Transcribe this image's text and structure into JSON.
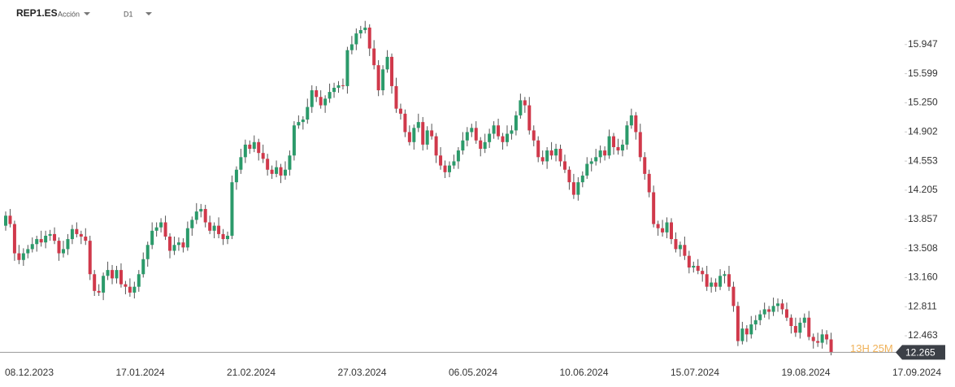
{
  "chart_data": {
    "type": "candlestick",
    "symbol": "REP1.ES",
    "kind": "Acción",
    "timeframe": "D1",
    "last_price": 12.265,
    "countdown": "13H 25M",
    "up_color": "#2b9a6a",
    "down_color": "#d0394b",
    "xlabels": [
      "08.12.2023",
      "17.01.2024",
      "21.02.2024",
      "27.03.2024",
      "06.05.2024",
      "10.06.2024",
      "15.07.2024",
      "19.08.2024",
      "17.09.2024"
    ],
    "ylim": [
      12.23,
      16.48
    ],
    "yticks": [
      15.947,
      15.599,
      {
        "value": 15.25,
        "label": "15.250"
      },
      14.902,
      14.553,
      14.205,
      13.857,
      13.508,
      {
        "value": 13.16,
        "label": "13.160"
      },
      12.811,
      12.463
    ],
    "open": [
      13.78,
      13.9,
      13.8,
      13.45,
      13.37,
      13.45,
      13.5,
      13.56,
      13.62,
      13.58,
      13.66,
      13.68,
      13.6,
      13.45,
      13.5,
      13.62,
      13.74,
      13.68,
      13.65,
      13.6,
      13.2,
      13.0,
      12.98,
      13.18,
      13.25,
      13.15,
      13.25,
      13.08,
      13.05,
      12.98,
      13.05,
      13.2,
      13.38,
      13.55,
      13.72,
      13.76,
      13.82,
      13.65,
      13.48,
      13.55,
      13.58,
      13.52,
      13.75,
      13.85,
      13.95,
      13.98,
      13.82,
      13.72,
      13.78,
      13.68,
      13.62,
      13.66,
      14.3,
      14.45,
      14.6,
      14.75,
      14.7,
      14.78,
      14.65,
      14.58,
      14.45,
      14.4,
      14.48,
      14.38,
      14.45,
      14.62,
      14.98,
      15.02,
      15.05,
      15.2,
      15.4,
      15.32,
      15.22,
      15.3,
      15.38,
      15.43,
      15.46,
      15.45,
      15.88,
      15.95,
      16.08,
      16.12,
      16.15,
      15.9,
      15.7,
      15.4,
      15.65,
      15.8,
      15.45,
      15.18,
      15.12,
      14.9,
      14.78,
      14.95,
      15.02,
      14.75,
      14.92,
      14.85,
      14.62,
      14.5,
      14.42,
      14.5,
      14.55,
      14.68,
      14.8,
      14.9,
      14.95,
      14.8,
      14.7,
      14.78,
      14.88,
      14.98,
      14.85,
      14.78,
      14.88,
      14.92,
      15.1,
      15.28,
      15.22,
      14.92,
      14.8,
      14.6,
      14.55,
      14.68,
      14.62,
      14.7,
      14.55,
      14.45,
      14.3,
      14.15,
      14.3,
      14.38,
      14.52,
      14.55,
      14.6,
      14.68,
      14.62,
      14.85,
      14.72,
      14.68,
      14.75,
      14.98,
      15.1,
      14.9,
      14.6,
      14.4,
      14.18,
      13.8,
      13.75,
      13.7,
      13.82,
      13.62,
      13.5,
      13.55,
      13.42,
      13.28,
      13.3,
      13.24,
      13.2,
      13.05,
      13.1,
      13.05,
      13.18,
      13.2,
      13.05,
      12.82,
      12.4,
      12.55,
      12.48,
      12.6,
      12.65,
      12.72,
      12.78,
      12.75,
      12.82,
      12.85,
      12.78,
      12.68,
      12.58,
      12.5,
      12.62,
      12.68,
      12.45,
      12.4,
      12.38,
      12.48,
      12.42
    ],
    "high": [
      13.95,
      13.98,
      13.84,
      13.55,
      13.51,
      13.55,
      13.64,
      13.66,
      13.72,
      13.72,
      13.73,
      13.76,
      13.64,
      13.6,
      13.68,
      13.79,
      13.82,
      13.72,
      13.75,
      13.66,
      13.25,
      13.08,
      13.22,
      13.35,
      13.31,
      13.3,
      13.33,
      13.12,
      13.15,
      13.11,
      13.25,
      13.46,
      13.59,
      13.82,
      13.82,
      13.87,
      13.9,
      13.69,
      13.65,
      13.64,
      13.63,
      13.83,
      13.89,
      14.05,
      14.04,
      14.03,
      13.9,
      13.82,
      13.88,
      13.74,
      13.71,
      14.38,
      14.49,
      14.7,
      14.81,
      14.8,
      14.86,
      14.82,
      14.75,
      14.64,
      14.5,
      14.56,
      14.52,
      14.55,
      14.68,
      15.03,
      15.1,
      15.09,
      15.3,
      15.46,
      15.45,
      15.4,
      15.34,
      15.48,
      15.49,
      15.51,
      15.54,
      15.92,
      16.05,
      16.14,
      16.17,
      16.23,
      16.19,
      16.0,
      15.76,
      15.7,
      15.88,
      15.84,
      15.55,
      15.24,
      15.17,
      14.98,
      14.99,
      15.12,
      15.08,
      14.97,
      15.0,
      14.89,
      14.72,
      14.56,
      14.55,
      14.63,
      14.72,
      14.9,
      14.96,
      15.0,
      15.03,
      14.84,
      14.88,
      14.94,
      15.03,
      15.06,
      14.89,
      14.98,
      14.98,
      15.15,
      15.36,
      15.32,
      15.32,
      14.98,
      14.85,
      14.68,
      14.72,
      14.78,
      14.76,
      14.75,
      14.63,
      14.49,
      14.4,
      14.36,
      14.43,
      14.6,
      14.59,
      14.7,
      14.74,
      14.73,
      14.93,
      14.89,
      14.82,
      14.81,
      15.03,
      15.18,
      15.14,
      15.0,
      14.66,
      14.45,
      14.26,
      13.84,
      13.85,
      13.88,
      13.87,
      13.7,
      13.59,
      13.65,
      13.48,
      13.35,
      13.38,
      13.28,
      13.3,
      13.16,
      13.15,
      13.26,
      13.24,
      13.3,
      13.11,
      12.87,
      12.63,
      12.59,
      12.7,
      12.71,
      12.77,
      12.86,
      12.82,
      12.92,
      12.91,
      12.9,
      12.86,
      12.72,
      12.68,
      12.68,
      12.73,
      12.76,
      12.49,
      12.5,
      12.54,
      12.53,
      12.5
    ],
    "low": [
      13.72,
      13.76,
      13.36,
      13.32,
      13.3,
      13.39,
      13.46,
      13.47,
      13.53,
      13.51,
      13.6,
      13.56,
      13.36,
      13.4,
      13.43,
      13.56,
      13.64,
      13.56,
      13.55,
      13.13,
      12.94,
      12.94,
      12.89,
      13.13,
      13.08,
      13.09,
      13.04,
      12.96,
      12.93,
      12.91,
      12.99,
      13.16,
      13.29,
      13.5,
      13.65,
      13.7,
      13.61,
      13.39,
      13.43,
      13.48,
      13.46,
      13.48,
      13.66,
      13.8,
      13.88,
      13.76,
      13.68,
      13.63,
      13.63,
      13.55,
      13.56,
      13.62,
      14.21,
      14.4,
      14.53,
      14.64,
      14.66,
      14.56,
      14.53,
      14.38,
      14.34,
      14.36,
      14.29,
      14.33,
      14.38,
      14.56,
      14.94,
      14.93,
      15.0,
      15.13,
      15.26,
      15.18,
      15.13,
      15.25,
      15.31,
      15.37,
      15.41,
      15.36,
      15.83,
      15.88,
      16.02,
      16.08,
      15.81,
      15.65,
      15.33,
      15.34,
      15.61,
      15.36,
      15.13,
      15.05,
      14.84,
      14.74,
      14.69,
      14.9,
      14.68,
      14.69,
      14.81,
      14.53,
      14.45,
      14.35,
      14.36,
      14.46,
      14.46,
      14.63,
      14.73,
      14.84,
      14.76,
      14.61,
      14.65,
      14.71,
      14.82,
      14.81,
      14.69,
      14.73,
      14.81,
      14.86,
      15.06,
      15.13,
      14.87,
      14.73,
      14.54,
      14.51,
      14.46,
      14.57,
      14.55,
      14.49,
      14.41,
      14.21,
      14.1,
      14.08,
      14.24,
      14.34,
      14.43,
      14.5,
      14.53,
      14.56,
      14.58,
      14.63,
      14.63,
      14.61,
      14.69,
      14.94,
      14.81,
      14.55,
      14.33,
      14.12,
      13.76,
      13.66,
      13.65,
      13.63,
      13.56,
      13.46,
      13.41,
      13.37,
      13.21,
      13.22,
      13.2,
      13.11,
      13.0,
      12.98,
      12.99,
      13.01,
      13.09,
      13.0,
      12.75,
      12.34,
      12.36,
      12.39,
      12.43,
      12.53,
      12.59,
      12.68,
      12.66,
      12.7,
      12.75,
      12.72,
      12.64,
      12.49,
      12.45,
      12.43,
      12.56,
      12.41,
      12.31,
      12.33,
      12.31,
      12.36,
      12.23
    ],
    "close": [
      13.9,
      13.8,
      13.45,
      13.37,
      13.45,
      13.5,
      13.56,
      13.62,
      13.58,
      13.66,
      13.68,
      13.6,
      13.45,
      13.5,
      13.62,
      13.74,
      13.68,
      13.65,
      13.6,
      13.2,
      13.0,
      12.98,
      13.18,
      13.25,
      13.15,
      13.25,
      13.08,
      13.05,
      12.98,
      13.05,
      13.2,
      13.38,
      13.55,
      13.72,
      13.76,
      13.82,
      13.65,
      13.48,
      13.55,
      13.58,
      13.52,
      13.75,
      13.85,
      13.95,
      13.98,
      13.82,
      13.72,
      13.78,
      13.68,
      13.62,
      13.66,
      14.3,
      14.45,
      14.6,
      14.75,
      14.7,
      14.78,
      14.65,
      14.58,
      14.45,
      14.4,
      14.48,
      14.38,
      14.45,
      14.62,
      14.98,
      15.02,
      15.05,
      15.2,
      15.4,
      15.32,
      15.22,
      15.3,
      15.38,
      15.43,
      15.46,
      15.45,
      15.88,
      15.95,
      16.08,
      16.12,
      16.15,
      15.9,
      15.7,
      15.4,
      15.65,
      15.8,
      15.45,
      15.18,
      15.12,
      14.9,
      14.78,
      14.95,
      15.02,
      14.75,
      14.92,
      14.85,
      14.62,
      14.5,
      14.42,
      14.5,
      14.55,
      14.68,
      14.8,
      14.9,
      14.95,
      14.8,
      14.7,
      14.78,
      14.88,
      14.98,
      14.85,
      14.78,
      14.88,
      14.92,
      15.1,
      15.28,
      15.22,
      14.92,
      14.8,
      14.6,
      14.55,
      14.68,
      14.62,
      14.7,
      14.55,
      14.45,
      14.3,
      14.15,
      14.3,
      14.38,
      14.52,
      14.55,
      14.6,
      14.68,
      14.62,
      14.85,
      14.72,
      14.68,
      14.75,
      14.98,
      15.1,
      14.9,
      14.6,
      14.4,
      14.18,
      13.8,
      13.75,
      13.7,
      13.82,
      13.62,
      13.5,
      13.55,
      13.42,
      13.28,
      13.3,
      13.24,
      13.2,
      13.05,
      13.1,
      13.05,
      13.18,
      13.2,
      13.05,
      12.82,
      12.4,
      12.55,
      12.48,
      12.6,
      12.65,
      12.72,
      12.78,
      12.75,
      12.82,
      12.85,
      12.78,
      12.68,
      12.58,
      12.5,
      12.62,
      12.68,
      12.45,
      12.4,
      12.38,
      12.48,
      12.42,
      12.265
    ]
  }
}
